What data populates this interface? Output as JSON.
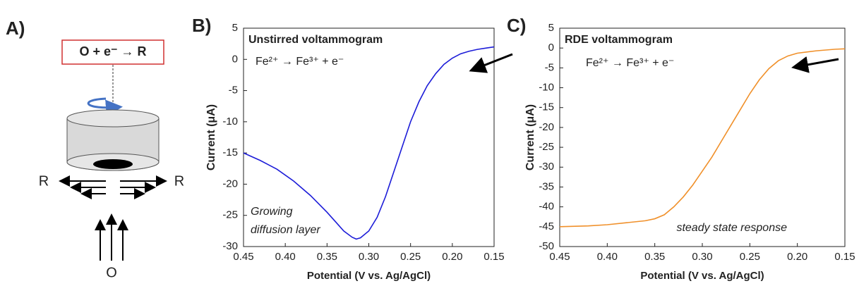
{
  "diagram": {
    "label": "A)",
    "reaction": "O + e⁻ → R",
    "left_product": "R",
    "right_product": "R",
    "reactant": "O"
  },
  "chart_data": [
    {
      "type": "line",
      "panel_label": "B)",
      "title": "Unstirred voltammogram",
      "annotations": [
        "Fe²⁺ → Fe³⁺ + e⁻",
        "Growing",
        "diffusion layer"
      ],
      "x_label": "Potential (V vs. Ag/AgCl)",
      "y_label": "Current (μA)",
      "xlim": [
        0.45,
        0.15
      ],
      "xticks": [
        0.45,
        {
          "value": 0.4,
          "label": "0.40"
        },
        0.35,
        {
          "value": 0.3,
          "label": "0.30"
        },
        0.25,
        {
          "value": 0.2,
          "label": "0.20"
        },
        0.15
      ],
      "ylim": [
        -30,
        5
      ],
      "yticks": [
        5,
        0,
        -5,
        -10,
        -15,
        -20,
        -25,
        -30
      ],
      "series": [
        {
          "color": "#1c1cd8",
          "x": [
            0.45,
            0.43,
            0.41,
            0.39,
            0.37,
            0.35,
            0.34,
            0.33,
            0.32,
            0.315,
            0.31,
            0.3,
            0.29,
            0.28,
            0.27,
            0.26,
            0.25,
            0.24,
            0.23,
            0.22,
            0.21,
            0.2,
            0.19,
            0.18,
            0.17,
            0.16,
            0.15
          ],
          "values": [
            -15,
            -16.2,
            -17.6,
            -19.5,
            -21.8,
            -24.5,
            -26,
            -27.5,
            -28.5,
            -28.8,
            -28.6,
            -27.5,
            -25.3,
            -22,
            -18,
            -14,
            -10,
            -6.8,
            -4.2,
            -2.3,
            -0.8,
            0.2,
            0.9,
            1.3,
            1.6,
            1.8,
            2.0
          ]
        }
      ]
    },
    {
      "type": "line",
      "panel_label": "C)",
      "title": "RDE voltammogram",
      "annotations": [
        "Fe²⁺ → Fe³⁺ + e⁻",
        "steady state response"
      ],
      "x_label": "Potential (V vs. Ag/AgCl)",
      "y_label": "Current (μA)",
      "xlim": [
        0.45,
        0.15
      ],
      "xticks": [
        0.45,
        {
          "value": 0.4,
          "label": "0.40"
        },
        0.35,
        {
          "value": 0.3,
          "label": "0.30"
        },
        0.25,
        {
          "value": 0.2,
          "label": "0.20"
        },
        0.15
      ],
      "ylim": [
        -50,
        5
      ],
      "yticks": [
        5,
        0,
        -5,
        -10,
        -15,
        -20,
        -25,
        -30,
        -35,
        -40,
        -45,
        -50
      ],
      "series": [
        {
          "color": "#f0902a",
          "x": [
            0.45,
            0.42,
            0.4,
            0.38,
            0.36,
            0.35,
            0.34,
            0.33,
            0.32,
            0.31,
            0.3,
            0.29,
            0.28,
            0.27,
            0.26,
            0.25,
            0.24,
            0.23,
            0.22,
            0.21,
            0.2,
            0.18,
            0.16,
            0.15
          ],
          "values": [
            -45,
            -44.8,
            -44.5,
            -44,
            -43.5,
            -43,
            -42,
            -40,
            -37.5,
            -34.5,
            -31,
            -27.5,
            -23.5,
            -19.5,
            -15.5,
            -11.5,
            -8,
            -5.2,
            -3.2,
            -2,
            -1.3,
            -0.7,
            -0.3,
            -0.2
          ]
        }
      ]
    }
  ]
}
